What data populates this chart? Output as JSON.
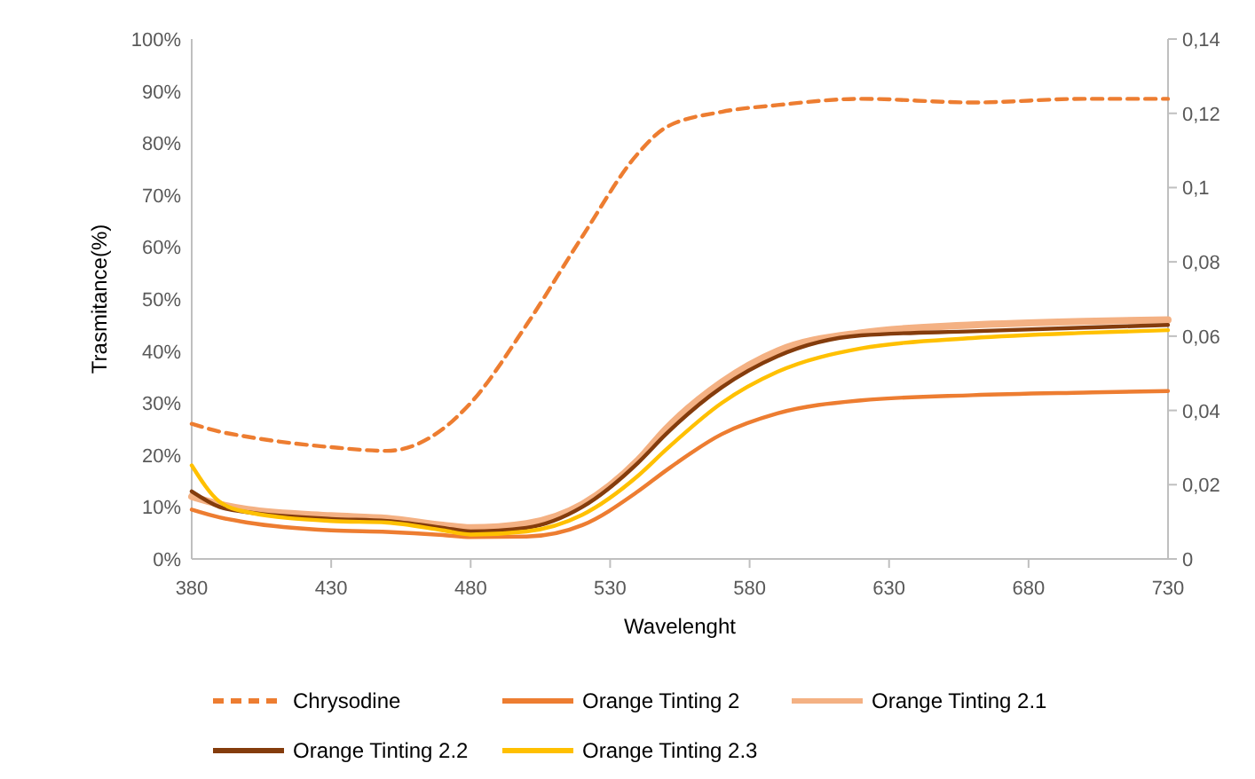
{
  "chart_data": {
    "type": "line",
    "xlabel": "Wavelenght",
    "ylabel": "Trasmitance(%)",
    "xlim": [
      380,
      730
    ],
    "xticks": [
      380,
      430,
      480,
      530,
      580,
      630,
      680,
      730
    ],
    "ylim": [
      0,
      100
    ],
    "yticks": [
      {
        "value": 0,
        "label": "0%"
      },
      {
        "value": 10,
        "label": "10%"
      },
      {
        "value": 20,
        "label": "20%"
      },
      {
        "value": 30,
        "label": "30%"
      },
      {
        "value": 40,
        "label": "40%"
      },
      {
        "value": 50,
        "label": "50%"
      },
      {
        "value": 60,
        "label": "60%"
      },
      {
        "value": 70,
        "label": "70%"
      },
      {
        "value": 80,
        "label": "80%"
      },
      {
        "value": 90,
        "label": "90%"
      },
      {
        "value": 100,
        "label": "100%"
      }
    ],
    "y2lim": [
      0,
      0.14
    ],
    "y2ticks": [
      {
        "value": 0,
        "label": "0"
      },
      {
        "value": 0.02,
        "label": "0,02"
      },
      {
        "value": 0.04,
        "label": "0,04"
      },
      {
        "value": 0.06,
        "label": "0,06"
      },
      {
        "value": 0.08,
        "label": "0,08"
      },
      {
        "value": 0.1,
        "label": "0,1"
      },
      {
        "value": 0.12,
        "label": "0,12"
      },
      {
        "value": 0.14,
        "label": "0,14"
      }
    ],
    "x": [
      380,
      390,
      400,
      430,
      450,
      470,
      480,
      500,
      520,
      540,
      550,
      570,
      590,
      620,
      660,
      700,
      730
    ],
    "grid": false,
    "legend": "bottom",
    "marker": "none",
    "series": [
      {
        "name": "Chrysodine",
        "color": "#ed7d31",
        "line_style": "dashed",
        "values": [
          26,
          24.5,
          23.5,
          21.5,
          20.8,
          25,
          30,
          45,
          62,
          78,
          83,
          86,
          87.3,
          88.5,
          87.8,
          88.5,
          88.5
        ]
      },
      {
        "name": "Orange Tinting 2",
        "color": "#ed7d31",
        "line_style": "solid",
        "values": [
          9.5,
          8,
          7,
          5.5,
          5.2,
          4.6,
          4.2,
          4.3,
          6.5,
          13,
          17,
          24,
          28,
          30.5,
          31.5,
          32,
          32.3
        ]
      },
      {
        "name": "Orange Tinting 2.1",
        "color": "#f4b183",
        "line_style": "solid",
        "values": [
          12,
          10.5,
          9.5,
          8.3,
          7.8,
          6.5,
          6,
          6.8,
          10.5,
          19,
          25,
          34,
          40,
          43.5,
          45,
          45.7,
          46
        ]
      },
      {
        "name": "Orange Tinting 2.2",
        "color": "#843c0c",
        "line_style": "solid",
        "values": [
          13,
          10,
          9,
          7.7,
          7.3,
          6,
          5.3,
          6,
          10,
          18.5,
          24,
          33,
          39,
          43,
          43.8,
          44.5,
          45
        ]
      },
      {
        "name": "Orange Tinting 2.3",
        "color": "#ffc000",
        "line_style": "solid",
        "values": [
          18,
          11,
          9,
          7.3,
          7,
          5.5,
          4.7,
          5.3,
          8.5,
          16,
          21,
          30,
          36,
          40.5,
          42.5,
          43.5,
          44
        ]
      }
    ]
  }
}
